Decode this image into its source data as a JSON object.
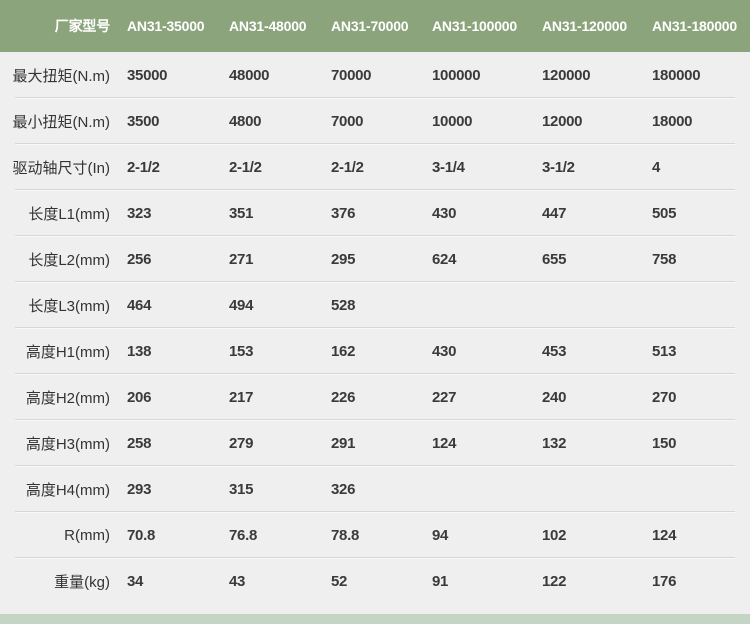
{
  "chart_data": {
    "type": "table",
    "header_label": "厂家型号",
    "columns": [
      "AN31-35000",
      "AN31-48000",
      "AN31-70000",
      "AN31-100000",
      "AN31-120000",
      "AN31-180000"
    ],
    "rows": [
      {
        "label": "最大扭矩(N.m)",
        "values": [
          "35000",
          "48000",
          "70000",
          "100000",
          "120000",
          "180000"
        ]
      },
      {
        "label": "最小扭矩(N.m)",
        "values": [
          "3500",
          "4800",
          "7000",
          "10000",
          "12000",
          "18000"
        ]
      },
      {
        "label": "驱动轴尺寸(In)",
        "values": [
          "2-1/2",
          "2-1/2",
          "2-1/2",
          "3-1/4",
          "3-1/2",
          "4"
        ]
      },
      {
        "label": "长度L1(mm)",
        "values": [
          "323",
          "351",
          "376",
          "430",
          "447",
          "505"
        ]
      },
      {
        "label": "长度L2(mm)",
        "values": [
          "256",
          "271",
          "295",
          "624",
          "655",
          "758"
        ]
      },
      {
        "label": "长度L3(mm)",
        "values": [
          "464",
          "494",
          "528",
          "",
          "",
          ""
        ]
      },
      {
        "label": "高度H1(mm)",
        "values": [
          "138",
          "153",
          "162",
          "430",
          "453",
          "513"
        ]
      },
      {
        "label": "高度H2(mm)",
        "values": [
          "206",
          "217",
          "226",
          "227",
          "240",
          "270"
        ]
      },
      {
        "label": "高度H3(mm)",
        "values": [
          "258",
          "279",
          "291",
          "124",
          "132",
          "150"
        ]
      },
      {
        "label": "高度H4(mm)",
        "values": [
          "293",
          "315",
          "326",
          "",
          "",
          ""
        ]
      },
      {
        "label": "R(mm)",
        "values": [
          "70.8",
          "76.8",
          "78.8",
          "94",
          "102",
          "124"
        ]
      },
      {
        "label": "重量(kg)",
        "values": [
          "34",
          "43",
          "52",
          "91",
          "122",
          "176"
        ]
      }
    ]
  },
  "colors": {
    "header_bg": "#8ca47c",
    "header_text": "#ffffff",
    "body_bg": "#efefef",
    "divider": "#d6d6d6",
    "label_text": "#333333",
    "value_text": "#3a3a3a",
    "footer_strip": "#c4d4c5"
  }
}
